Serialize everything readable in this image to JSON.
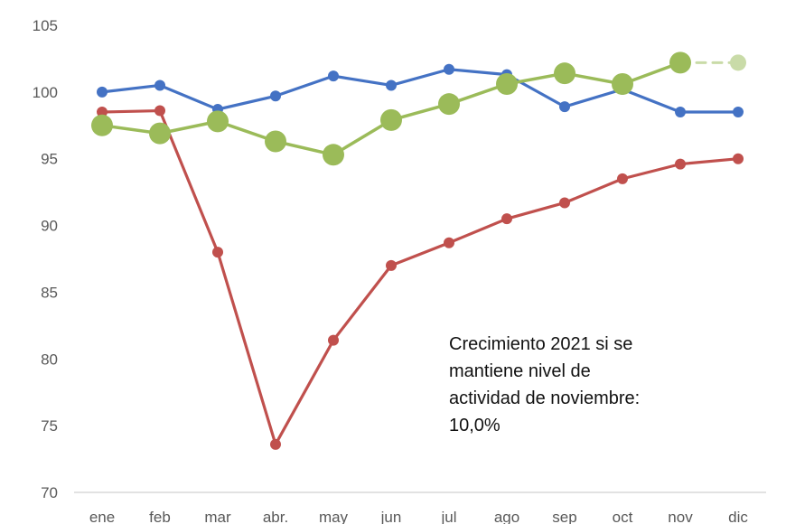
{
  "chart_data": {
    "type": "line",
    "title": "",
    "xlabel": "",
    "ylabel": "",
    "ylim": [
      70,
      105
    ],
    "yticks": [
      70,
      75,
      80,
      85,
      90,
      95,
      100,
      105
    ],
    "grid": false,
    "categories": [
      "ene",
      "feb",
      "mar",
      "abr.",
      "may",
      "jun",
      "jul",
      "ago",
      "sep",
      "oct",
      "nov",
      "dic"
    ],
    "series": [
      {
        "name": "blue series",
        "color": "#4472c4",
        "values": [
          100.0,
          100.5,
          98.7,
          99.7,
          101.2,
          100.5,
          101.7,
          101.3,
          98.9,
          100.2,
          98.5,
          98.5
        ]
      },
      {
        "name": "red series",
        "color": "#c0504d",
        "values": [
          98.5,
          98.6,
          88.0,
          73.6,
          81.4,
          87.0,
          88.7,
          90.5,
          91.7,
          93.5,
          94.6,
          95.0
        ]
      },
      {
        "name": "green series",
        "color": "#9bbb59",
        "values": [
          97.5,
          96.9,
          97.8,
          96.3,
          95.3,
          97.9,
          99.1,
          100.6,
          101.4,
          100.6,
          102.2,
          null
        ]
      },
      {
        "name": "green projection",
        "color": "#c9dba8",
        "dashed": true,
        "values": [
          null,
          null,
          null,
          null,
          null,
          null,
          null,
          null,
          null,
          null,
          102.2,
          102.2
        ]
      }
    ],
    "annotation": [
      "Crecimiento 2021 si se",
      "mantiene nivel de",
      "actividad de noviembre:",
      "10,0%"
    ]
  }
}
